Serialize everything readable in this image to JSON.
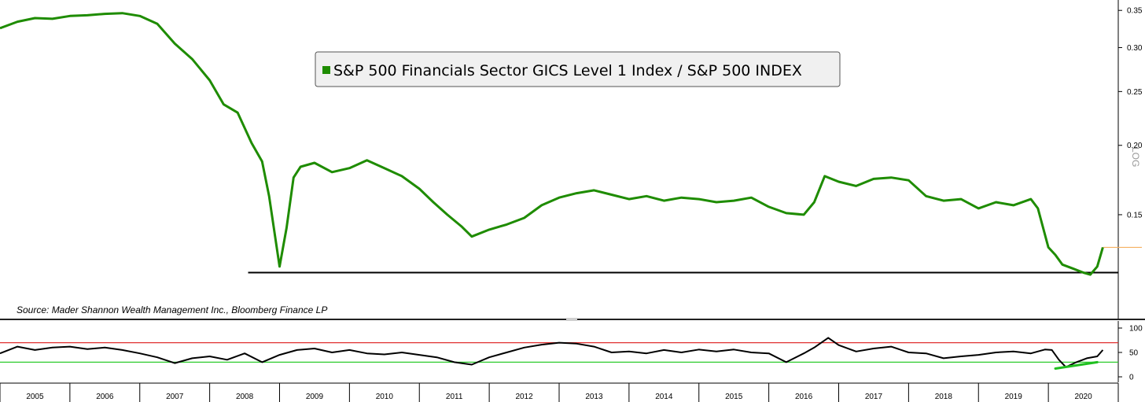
{
  "chart_data": [
    {
      "type": "line",
      "title": "",
      "legend": "top-center",
      "scale": "log",
      "ylim": [
        0.11,
        0.356
      ],
      "yticks": [
        "0.35",
        "0.30",
        "0.25",
        "0.20",
        "0.15"
      ],
      "ytick_values": [
        0.35,
        0.3,
        0.25,
        0.2,
        0.15
      ],
      "source": "Source: Mader Shannon Wealth Management Inc., Bloomberg Finance LP",
      "scale_label": "LOG",
      "support_level": 0.118,
      "last_value_marker": 0.131,
      "colors": {
        "series": "#1e8c00",
        "support": "#000000",
        "last_value": "#f5b060"
      },
      "series": [
        {
          "name": "S&P 500 Financials Sector GICS Level 1 Index / S&P 500 INDEX",
          "x": [
            2005.0,
            2005.25,
            2005.5,
            2005.75,
            2006.0,
            2006.25,
            2006.5,
            2006.75,
            2007.0,
            2007.25,
            2007.5,
            2007.75,
            2008.0,
            2008.2,
            2008.4,
            2008.6,
            2008.75,
            2008.85,
            2009.0,
            2009.1,
            2009.2,
            2009.3,
            2009.5,
            2009.75,
            2010.0,
            2010.25,
            2010.5,
            2010.75,
            2011.0,
            2011.2,
            2011.4,
            2011.6,
            2011.75,
            2012.0,
            2012.25,
            2012.5,
            2012.75,
            2013.0,
            2013.25,
            2013.5,
            2013.75,
            2014.0,
            2014.25,
            2014.5,
            2014.75,
            2015.0,
            2015.25,
            2015.5,
            2015.75,
            2016.0,
            2016.25,
            2016.5,
            2016.65,
            2016.8,
            2017.0,
            2017.25,
            2017.5,
            2017.75,
            2018.0,
            2018.25,
            2018.5,
            2018.75,
            2019.0,
            2019.25,
            2019.5,
            2019.75,
            2019.85,
            2020.0,
            2020.1,
            2020.2,
            2020.35,
            2020.5,
            2020.6,
            2020.7,
            2020.78
          ],
          "values": [
            0.325,
            0.334,
            0.339,
            0.338,
            0.342,
            0.343,
            0.345,
            0.346,
            0.342,
            0.331,
            0.305,
            0.286,
            0.262,
            0.237,
            0.229,
            0.202,
            0.187,
            0.162,
            0.121,
            0.142,
            0.175,
            0.183,
            0.186,
            0.179,
            0.182,
            0.188,
            0.182,
            0.176,
            0.167,
            0.158,
            0.15,
            0.143,
            0.137,
            0.141,
            0.144,
            0.148,
            0.156,
            0.161,
            0.164,
            0.166,
            0.163,
            0.16,
            0.162,
            0.159,
            0.161,
            0.16,
            0.158,
            0.159,
            0.161,
            0.155,
            0.151,
            0.15,
            0.158,
            0.176,
            0.172,
            0.169,
            0.174,
            0.175,
            0.173,
            0.162,
            0.159,
            0.16,
            0.154,
            0.158,
            0.156,
            0.16,
            0.154,
            0.131,
            0.127,
            0.122,
            0.12,
            0.118,
            0.117,
            0.121,
            0.131
          ]
        }
      ]
    },
    {
      "type": "line",
      "title": "",
      "ylim": [
        0,
        100
      ],
      "yticks": [
        "100",
        "50",
        "0"
      ],
      "ytick_values": [
        100,
        50,
        0
      ],
      "overbought": 70,
      "oversold": 30,
      "colors": {
        "series": "#000000",
        "overbought": "#e03030",
        "oversold": "#2ecc2e",
        "divergence": "#1fbf1f"
      },
      "divergence": {
        "x": [
          2020.1,
          2020.7
        ],
        "values": [
          17,
          30
        ]
      },
      "x_categories": [
        "2005",
        "2006",
        "2007",
        "2008",
        "2009",
        "2010",
        "2011",
        "2012",
        "2013",
        "2014",
        "2015",
        "2016",
        "2017",
        "2018",
        "2019",
        "2020"
      ],
      "series": [
        {
          "x": [
            2005.0,
            2005.25,
            2005.5,
            2005.75,
            2006.0,
            2006.25,
            2006.5,
            2006.75,
            2007.0,
            2007.25,
            2007.5,
            2007.75,
            2008.0,
            2008.25,
            2008.5,
            2008.75,
            2009.0,
            2009.25,
            2009.5,
            2009.75,
            2010.0,
            2010.25,
            2010.5,
            2010.75,
            2011.0,
            2011.25,
            2011.5,
            2011.75,
            2012.0,
            2012.25,
            2012.5,
            2012.75,
            2013.0,
            2013.25,
            2013.5,
            2013.75,
            2014.0,
            2014.25,
            2014.5,
            2014.75,
            2015.0,
            2015.25,
            2015.5,
            2015.75,
            2016.0,
            2016.25,
            2016.5,
            2016.65,
            2016.85,
            2017.0,
            2017.25,
            2017.5,
            2017.75,
            2018.0,
            2018.25,
            2018.5,
            2018.75,
            2019.0,
            2019.25,
            2019.5,
            2019.75,
            2019.95,
            2020.05,
            2020.15,
            2020.25,
            2020.4,
            2020.55,
            2020.7,
            2020.78
          ],
          "values": [
            48,
            62,
            55,
            60,
            62,
            57,
            60,
            55,
            48,
            40,
            28,
            38,
            42,
            35,
            48,
            30,
            45,
            55,
            58,
            50,
            55,
            48,
            46,
            50,
            45,
            40,
            30,
            25,
            40,
            50,
            60,
            66,
            70,
            68,
            62,
            50,
            52,
            48,
            55,
            50,
            56,
            52,
            56,
            50,
            48,
            30,
            48,
            60,
            80,
            65,
            52,
            58,
            62,
            50,
            48,
            38,
            42,
            45,
            50,
            52,
            48,
            56,
            55,
            35,
            20,
            30,
            38,
            42,
            55
          ]
        }
      ]
    }
  ]
}
